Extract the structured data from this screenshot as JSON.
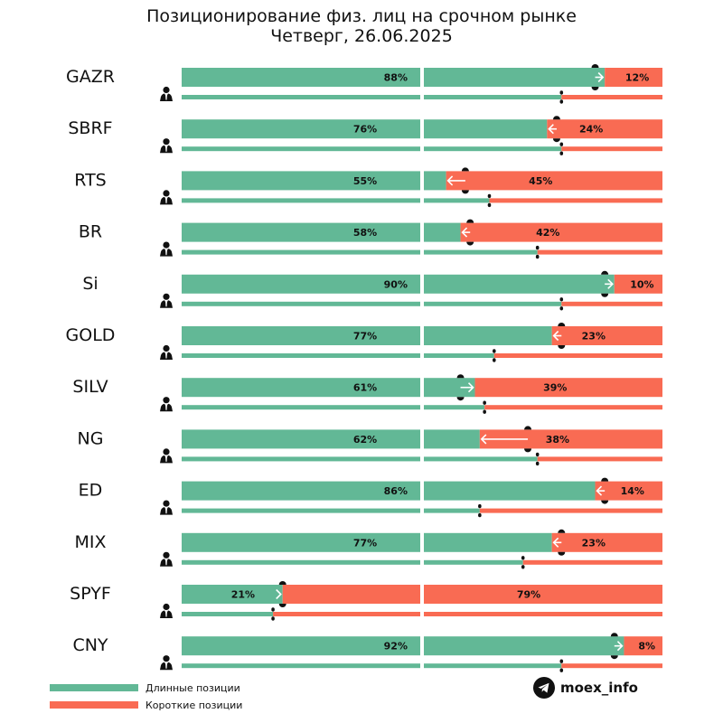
{
  "title_line1": "Позиционирование физ. лиц на срочном рынке",
  "title_line2": "Четверг, 26.06.2025",
  "colors": {
    "long": "#62b896",
    "short": "#f96b53",
    "marker": "#111111",
    "arrow": "#ffffff"
  },
  "legend": {
    "long_label": "Длинные позиции",
    "short_label": "Короткие позиции"
  },
  "brand": {
    "text": "moex_info",
    "icon": "telegram-icon"
  },
  "chart_data": {
    "type": "bar",
    "orientation": "horizontal",
    "stacked": true,
    "categories": [
      "GAZR",
      "SBRF",
      "RTS",
      "BR",
      "Si",
      "GOLD",
      "SILV",
      "NG",
      "ED",
      "MIX",
      "SPYF",
      "CNY"
    ],
    "series": [
      {
        "name": "Длинные позиции",
        "values": [
          88,
          76,
          55,
          58,
          90,
          77,
          61,
          62,
          86,
          77,
          21,
          92
        ]
      },
      {
        "name": "Короткие позиции",
        "values": [
          12,
          24,
          45,
          42,
          10,
          23,
          39,
          38,
          14,
          23,
          79,
          8
        ]
      }
    ],
    "previous_long_share": [
      86,
      78,
      59,
      60,
      88,
      79,
      58,
      72,
      88,
      79,
      21,
      90
    ],
    "secondary_long_share": [
      79,
      79,
      64,
      74,
      79,
      65,
      63,
      74,
      62,
      71,
      19,
      79
    ],
    "arrow_direction": [
      "right",
      "left",
      "left",
      "left",
      "right",
      "left",
      "right",
      "left",
      "left",
      "left",
      "right",
      "right"
    ],
    "value_suffix": "%",
    "xlim": [
      0,
      100
    ],
    "person_icon": "person-icon",
    "legend_position": "bottom-left"
  }
}
